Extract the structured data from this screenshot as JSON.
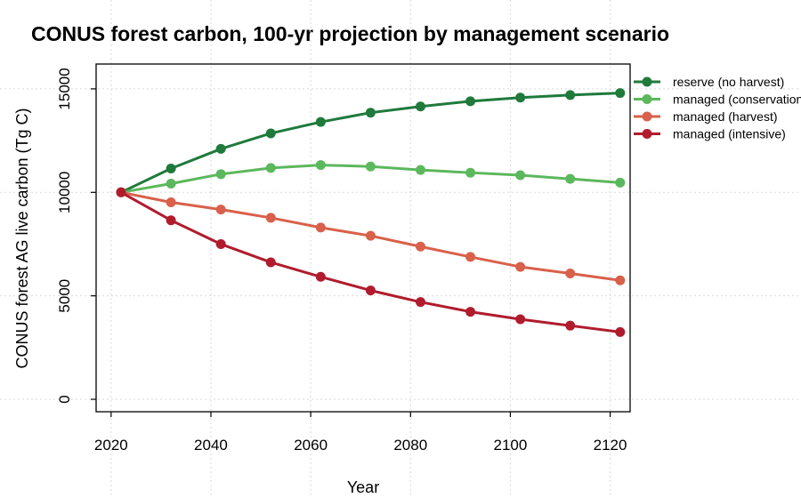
{
  "chart_data": {
    "type": "line",
    "title": "CONUS forest carbon, 100-yr projection by management scenario",
    "xlabel": "Year",
    "ylabel": "CONUS forest AG live carbon (Tg C)",
    "xlim": [
      2017,
      2124
    ],
    "ylim": [
      -600,
      16200
    ],
    "x_ticks": [
      2020,
      2040,
      2060,
      2080,
      2100,
      2120
    ],
    "y_ticks": [
      0,
      5000,
      10000,
      15000
    ],
    "grid": true,
    "legend_position": "right",
    "x": [
      2022,
      2032,
      2042,
      2052,
      2062,
      2072,
      2082,
      2092,
      2102,
      2112,
      2122
    ],
    "series": [
      {
        "name": "reserve (no harvest)",
        "color": "#1f7a3c",
        "values": [
          10000,
          11150,
          12100,
          12850,
          13400,
          13850,
          14150,
          14400,
          14580,
          14700,
          14800
        ]
      },
      {
        "name": "managed (conservation)",
        "color": "#5cb85c",
        "values": [
          10000,
          10420,
          10880,
          11180,
          11320,
          11250,
          11080,
          10950,
          10830,
          10650,
          10470
        ]
      },
      {
        "name": "managed (harvest)",
        "color": "#d9604a",
        "values": [
          10000,
          9520,
          9170,
          8770,
          8300,
          7900,
          7380,
          6880,
          6400,
          6080,
          5750
        ]
      },
      {
        "name": "managed (intensive)",
        "color": "#b01c2e",
        "values": [
          10000,
          8650,
          7500,
          6620,
          5920,
          5260,
          4700,
          4230,
          3870,
          3560,
          3250
        ]
      }
    ]
  }
}
